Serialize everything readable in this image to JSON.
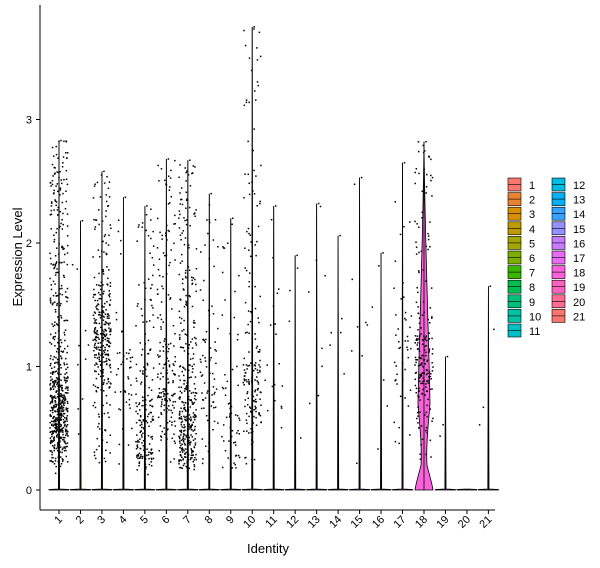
{
  "chart_data": {
    "type": "violin",
    "title": "",
    "xlabel": "Identity",
    "ylabel": "Expression Level",
    "ylim": [
      -0.18,
      3.88
    ],
    "yticks": [
      0,
      1,
      2,
      3
    ],
    "categories": [
      "1",
      "2",
      "3",
      "4",
      "5",
      "6",
      "7",
      "8",
      "9",
      "10",
      "11",
      "12",
      "13",
      "14",
      "15",
      "16",
      "17",
      "18",
      "19",
      "20",
      "21"
    ],
    "legend": {
      "placement": "right",
      "columns": 2
    },
    "groups": [
      {
        "id": "1",
        "color": "#F8766D",
        "max": 2.83,
        "n_pos": 620,
        "mode": 0.65
      },
      {
        "id": "2",
        "color": "#EA8331",
        "max": 2.18,
        "n_pos": 10,
        "mode": 1.0
      },
      {
        "id": "3",
        "color": "#D89000",
        "max": 2.58,
        "n_pos": 320,
        "mode": 1.2
      },
      {
        "id": "4",
        "color": "#C09B00",
        "max": 2.37,
        "n_pos": 45,
        "mode": 0.9
      },
      {
        "id": "5",
        "color": "#A3A500",
        "max": 2.3,
        "n_pos": 190,
        "mode": 0.45
      },
      {
        "id": "6",
        "color": "#7CAE00",
        "max": 2.68,
        "n_pos": 180,
        "mode": 0.8
      },
      {
        "id": "7",
        "color": "#39B600",
        "max": 2.67,
        "n_pos": 360,
        "mode": 0.5
      },
      {
        "id": "8",
        "color": "#00BB4E",
        "max": 2.4,
        "n_pos": 75,
        "mode": 0.9
      },
      {
        "id": "9",
        "color": "#00BF7D",
        "max": 2.2,
        "n_pos": 60,
        "mode": 0.55
      },
      {
        "id": "10",
        "color": "#00C1A3",
        "max": 3.75,
        "n_pos": 180,
        "mode": 0.8
      },
      {
        "id": "11",
        "color": "#00BFC4",
        "max": 2.3,
        "n_pos": 20,
        "mode": 1.0
      },
      {
        "id": "12",
        "color": "#00BAE0",
        "max": 1.9,
        "n_pos": 4,
        "mode": 1.3
      },
      {
        "id": "13",
        "color": "#00B0F6",
        "max": 2.32,
        "n_pos": 8,
        "mode": 0.9
      },
      {
        "id": "14",
        "color": "#35A2FF",
        "max": 2.06,
        "n_pos": 5,
        "mode": 1.2
      },
      {
        "id": "15",
        "color": "#9590FF",
        "max": 2.53,
        "n_pos": 8,
        "mode": 1.2
      },
      {
        "id": "16",
        "color": "#C77CFF",
        "max": 1.92,
        "n_pos": 5,
        "mode": 0.8
      },
      {
        "id": "17",
        "color": "#E76BF3",
        "max": 2.65,
        "n_pos": 45,
        "mode": 1.0
      },
      {
        "id": "18",
        "color": "#FA62DB",
        "max": 2.82,
        "n_pos": 200,
        "mode": 1.0
      },
      {
        "id": "19",
        "color": "#FF62BC",
        "max": 1.08,
        "n_pos": 2,
        "mode": 0.5
      },
      {
        "id": "20",
        "color": "#FF6C91",
        "max": 0.0,
        "n_pos": 0,
        "mode": 0.0
      },
      {
        "id": "21",
        "color": "#F8766D",
        "max": 1.65,
        "n_pos": 3,
        "mode": 0.5
      }
    ]
  }
}
